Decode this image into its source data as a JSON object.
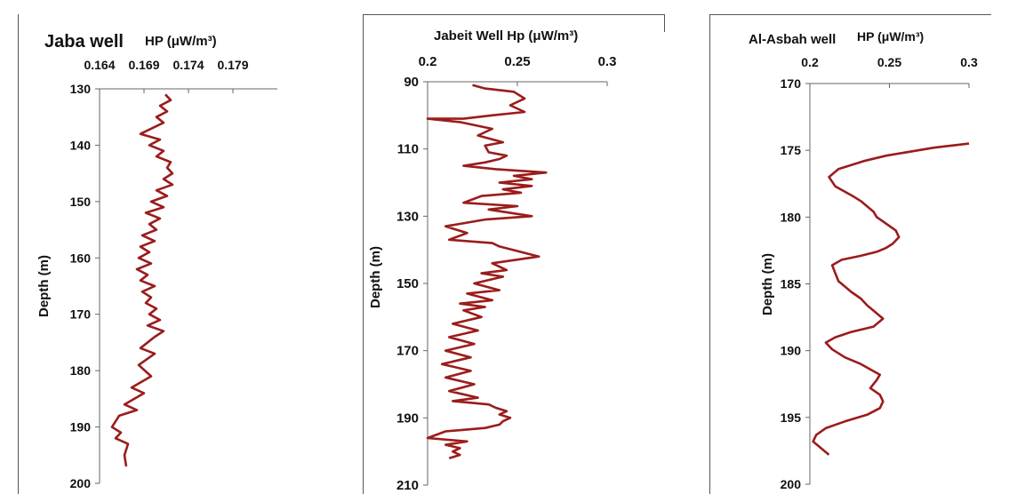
{
  "chart_data": [
    {
      "type": "line",
      "title": "Jaba well",
      "xlabel": "HP (μW/m³)",
      "ylabel": "Depth (m)",
      "xlim": [
        0.164,
        0.184
      ],
      "ylim": [
        130,
        200
      ],
      "xticks": [
        "0.164",
        "0.169",
        "0.174",
        "0.179"
      ],
      "xtick_values": [
        0.164,
        0.169,
        0.174,
        0.179
      ],
      "yticks": [
        "130",
        "140",
        "150",
        "160",
        "170",
        "180",
        "190",
        "200"
      ],
      "ytick_values": [
        130,
        140,
        150,
        160,
        170,
        180,
        190,
        200
      ],
      "series_color": "#9b1c1c",
      "series": [
        {
          "x": [
            0.1714,
            0.172,
            0.1708,
            0.1716,
            0.1704,
            0.1712,
            0.1686,
            0.1708,
            0.1696,
            0.1712,
            0.1704,
            0.172,
            0.1716,
            0.1722,
            0.1712,
            0.1722,
            0.1704,
            0.1716,
            0.1698,
            0.1712,
            0.1692,
            0.1708,
            0.1696,
            0.1704,
            0.1688,
            0.1702,
            0.1686,
            0.1696,
            0.1684,
            0.1698,
            0.1682,
            0.1694,
            0.1686,
            0.1702,
            0.1688,
            0.1698,
            0.1692,
            0.1704,
            0.1696,
            0.1708,
            0.1694,
            0.1712,
            0.1702,
            0.1686,
            0.1702,
            0.1684,
            0.1698,
            0.1676,
            0.169,
            0.1668,
            0.1682,
            0.1662,
            0.1654,
            0.1664,
            0.1658,
            0.1672,
            0.1668,
            0.167
          ],
          "y": [
            131,
            132,
            133,
            134,
            135,
            136,
            138,
            139,
            140,
            141,
            142,
            143,
            144,
            145,
            146,
            147,
            148,
            149,
            150,
            151,
            152,
            153,
            154,
            155,
            156,
            157,
            158,
            159,
            160,
            161,
            162,
            163,
            164,
            165,
            166,
            167,
            168,
            169,
            170,
            171,
            172,
            173,
            174,
            176,
            177,
            179,
            181,
            183,
            184,
            186,
            187,
            188,
            190,
            191,
            192,
            193,
            195,
            197
          ]
        }
      ]
    },
    {
      "type": "line",
      "title": "Jabeit Well Hp (μW/m³)",
      "xlabel": "",
      "ylabel": "Depth (m)",
      "xlim": [
        0.2,
        0.3
      ],
      "ylim": [
        90,
        210
      ],
      "xticks": [
        "0.2",
        "0.25",
        "0.3"
      ],
      "xtick_values": [
        0.2,
        0.25,
        0.3
      ],
      "yticks": [
        "90",
        "110",
        "130",
        "150",
        "170",
        "190",
        "210"
      ],
      "ytick_values": [
        90,
        110,
        130,
        150,
        170,
        190,
        210
      ],
      "series_color": "#9b1c1c",
      "series": [
        {
          "x": [
            0.225,
            0.232,
            0.248,
            0.254,
            0.246,
            0.254,
            0.236,
            0.22,
            0.2,
            0.218,
            0.236,
            0.228,
            0.242,
            0.232,
            0.234,
            0.244,
            0.24,
            0.232,
            0.22,
            0.238,
            0.266,
            0.248,
            0.258,
            0.24,
            0.258,
            0.242,
            0.252,
            0.23,
            0.22,
            0.25,
            0.234,
            0.258,
            0.232,
            0.21,
            0.222,
            0.212,
            0.236,
            0.24,
            0.262,
            0.236,
            0.244,
            0.23,
            0.242,
            0.226,
            0.24,
            0.222,
            0.236,
            0.218,
            0.232,
            0.22,
            0.23,
            0.214,
            0.228,
            0.212,
            0.226,
            0.21,
            0.224,
            0.208,
            0.224,
            0.21,
            0.226,
            0.212,
            0.228,
            0.214,
            0.234,
            0.238,
            0.244,
            0.24,
            0.246,
            0.242,
            0.24,
            0.232,
            0.21,
            0.2,
            0.222,
            0.21,
            0.218,
            0.214,
            0.218,
            0.212
          ],
          "y": [
            91,
            92,
            93,
            95,
            97,
            99,
            100,
            101,
            101,
            102,
            104,
            106,
            108,
            109,
            111,
            112,
            113,
            114,
            115,
            116,
            117,
            118,
            119,
            120,
            121,
            122,
            123,
            124,
            126,
            127,
            128,
            130,
            131,
            133,
            135,
            137,
            138,
            139,
            142,
            144,
            146,
            147,
            148,
            150,
            152,
            153,
            155,
            156,
            157,
            158,
            160,
            162,
            164,
            166,
            168,
            170,
            172,
            174,
            176,
            178,
            180,
            182,
            184,
            185,
            186,
            187,
            188,
            189,
            190,
            191,
            192,
            193,
            194,
            196,
            197,
            198,
            199,
            200,
            201,
            202
          ]
        }
      ]
    },
    {
      "type": "line",
      "title": "Al-Asbah well",
      "xlabel": "HP (μW/m³)",
      "ylabel": "Depth (m)",
      "xlim": [
        0.2,
        0.3
      ],
      "ylim": [
        170,
        200
      ],
      "xticks": [
        "0.2",
        "0.25",
        "0.3"
      ],
      "xtick_values": [
        0.2,
        0.25,
        0.3
      ],
      "yticks": [
        "170",
        "175",
        "180",
        "185",
        "190",
        "195",
        "200"
      ],
      "ytick_values": [
        170,
        175,
        180,
        185,
        190,
        195,
        200
      ],
      "series_color": "#9b1c1c",
      "series": [
        {
          "x": [
            0.3,
            0.278,
            0.268,
            0.248,
            0.234,
            0.218,
            0.212,
            0.216,
            0.222,
            0.228,
            0.232,
            0.236,
            0.24,
            0.242,
            0.248,
            0.254,
            0.256,
            0.252,
            0.248,
            0.242,
            0.232,
            0.22,
            0.214,
            0.216,
            0.218,
            0.222,
            0.226,
            0.232,
            0.236,
            0.24,
            0.246,
            0.24,
            0.226,
            0.216,
            0.21,
            0.214,
            0.222,
            0.232,
            0.238,
            0.244,
            0.242,
            0.238,
            0.244,
            0.246,
            0.244,
            0.236,
            0.222,
            0.21,
            0.204,
            0.202,
            0.208,
            0.212
          ],
          "y": [
            174.5,
            174.8,
            175,
            175.4,
            175.8,
            176.4,
            177,
            177.7,
            178.1,
            178.5,
            178.8,
            179.2,
            179.6,
            180.0,
            180.5,
            181,
            181.5,
            182,
            182.3,
            182.6,
            182.9,
            183.2,
            183.6,
            184.2,
            184.8,
            185.2,
            185.6,
            186.1,
            186.6,
            187,
            187.6,
            188.2,
            188.6,
            189,
            189.4,
            189.9,
            190.5,
            191,
            191.4,
            191.8,
            192.2,
            192.8,
            193.3,
            193.8,
            194.3,
            194.8,
            195.3,
            195.8,
            196.3,
            196.8,
            197.4,
            197.8
          ]
        }
      ]
    }
  ]
}
